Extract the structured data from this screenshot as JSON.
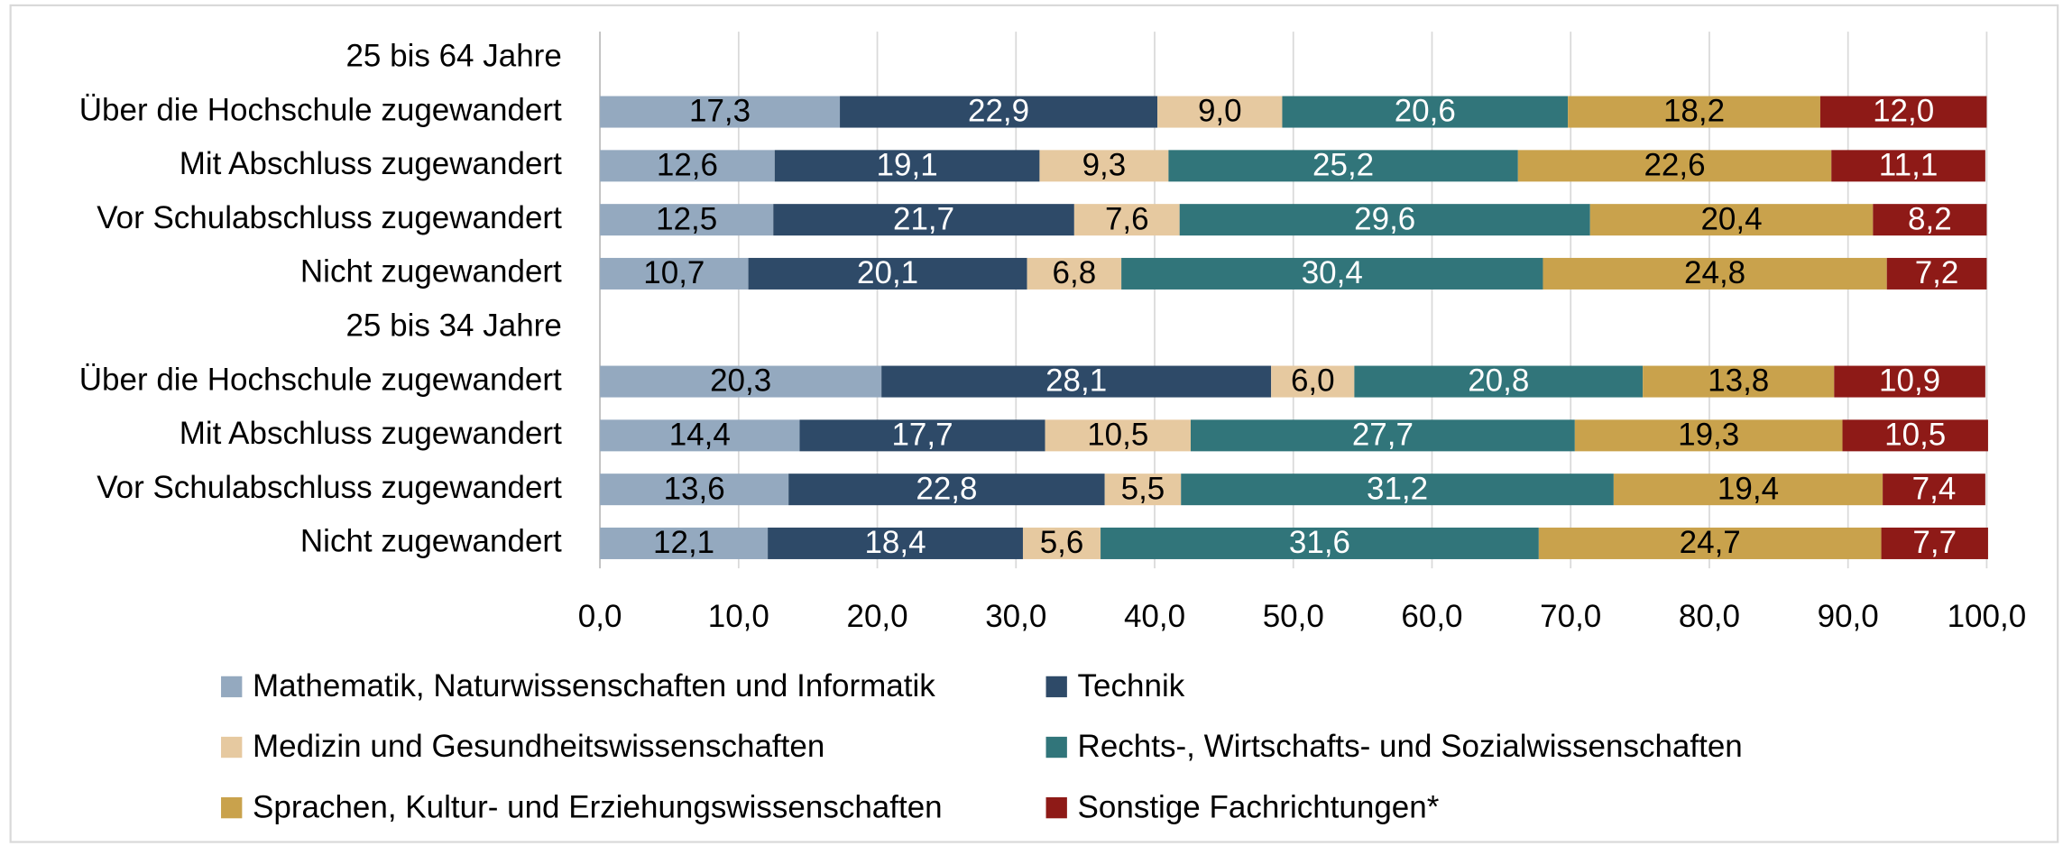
{
  "chart_data": {
    "type": "stacked_hbar",
    "categories": [
      "25 bis 64  Jahre",
      "Über die Hochschule zugewandert",
      "Mit Abschluss zugewandert",
      "Vor Schulabschluss zugewandert",
      "Nicht zugewandert",
      "25 bis 34  Jahre",
      "Über die Hochschule zugewandert",
      "Mit Abschluss zugewandert",
      "Vor Schulabschluss zugewandert",
      "Nicht zugewandert"
    ],
    "series": [
      {
        "name": "Mathematik, Naturwissenschaften und Informatik",
        "color": "#94a9bf",
        "label_color": "#000000",
        "values": [
          null,
          17.3,
          12.6,
          12.5,
          10.7,
          null,
          20.3,
          14.4,
          13.6,
          12.1
        ],
        "value_labels": [
          null,
          "17,3",
          "12,6",
          "12,5",
          "10,7",
          null,
          "20,3",
          "14,4",
          "13,6",
          "12,1"
        ]
      },
      {
        "name": "Technik",
        "color": "#2e4a68",
        "label_color": "#ffffff",
        "values": [
          null,
          22.9,
          19.1,
          21.7,
          20.1,
          null,
          28.1,
          17.7,
          22.8,
          18.4
        ],
        "value_labels": [
          null,
          "22,9",
          "19,1",
          "21,7",
          "20,1",
          null,
          "28,1",
          "17,7",
          "22,8",
          "18,4"
        ]
      },
      {
        "name": "Medizin und Gesundheitswissenschaften",
        "color": "#e6c9a0",
        "label_color": "#000000",
        "values": [
          null,
          9.0,
          9.3,
          7.6,
          6.8,
          null,
          6.0,
          10.5,
          5.5,
          5.6
        ],
        "value_labels": [
          null,
          "9,0",
          "9,3",
          "7,6",
          "6,8",
          null,
          "6,0",
          "10,5",
          "5,5",
          "5,6"
        ]
      },
      {
        "name": "Rechts-, Wirtschafts- und Sozialwissenschaften",
        "color": "#31757a",
        "label_color": "#ffffff",
        "values": [
          null,
          20.6,
          25.2,
          29.6,
          30.4,
          null,
          20.8,
          27.7,
          31.2,
          31.6
        ],
        "value_labels": [
          null,
          "20,6",
          "25,2",
          "29,6",
          "30,4",
          null,
          "20,8",
          "27,7",
          "31,2",
          "31,6"
        ]
      },
      {
        "name": "Sprachen, Kultur- und Erziehungswissenschaften",
        "color": "#c9a24c",
        "label_color": "#000000",
        "values": [
          null,
          18.2,
          22.6,
          20.4,
          24.8,
          null,
          13.8,
          19.3,
          19.4,
          24.7
        ],
        "value_labels": [
          null,
          "18,2",
          "22,6",
          "20,4",
          "24,8",
          null,
          "13,8",
          "19,3",
          "19,4",
          "24,7"
        ]
      },
      {
        "name": "Sonstige Fachrichtungen*",
        "color": "#8e1a17",
        "label_color": "#ffffff",
        "values": [
          null,
          12.0,
          11.1,
          8.2,
          7.2,
          null,
          10.9,
          10.5,
          7.4,
          7.7
        ],
        "value_labels": [
          null,
          "12,0",
          "11,1",
          "8,2",
          "7,2",
          null,
          "10,9",
          "10,5",
          "7,4",
          "7,7"
        ]
      }
    ],
    "xlim": [
      0,
      100
    ],
    "xticks": [
      {
        "value": 0,
        "label": "0,0"
      },
      {
        "value": 10,
        "label": "10,0"
      },
      {
        "value": 20,
        "label": "20,0"
      },
      {
        "value": 30,
        "label": "30,0"
      },
      {
        "value": 40,
        "label": "40,0"
      },
      {
        "value": 50,
        "label": "50,0"
      },
      {
        "value": 60,
        "label": "60,0"
      },
      {
        "value": 70,
        "label": "70,0"
      },
      {
        "value": 80,
        "label": "80,0"
      },
      {
        "value": 90,
        "label": "90,0"
      },
      {
        "value": 100,
        "label": "100,0"
      }
    ],
    "grid": true,
    "legend": "bottom"
  }
}
